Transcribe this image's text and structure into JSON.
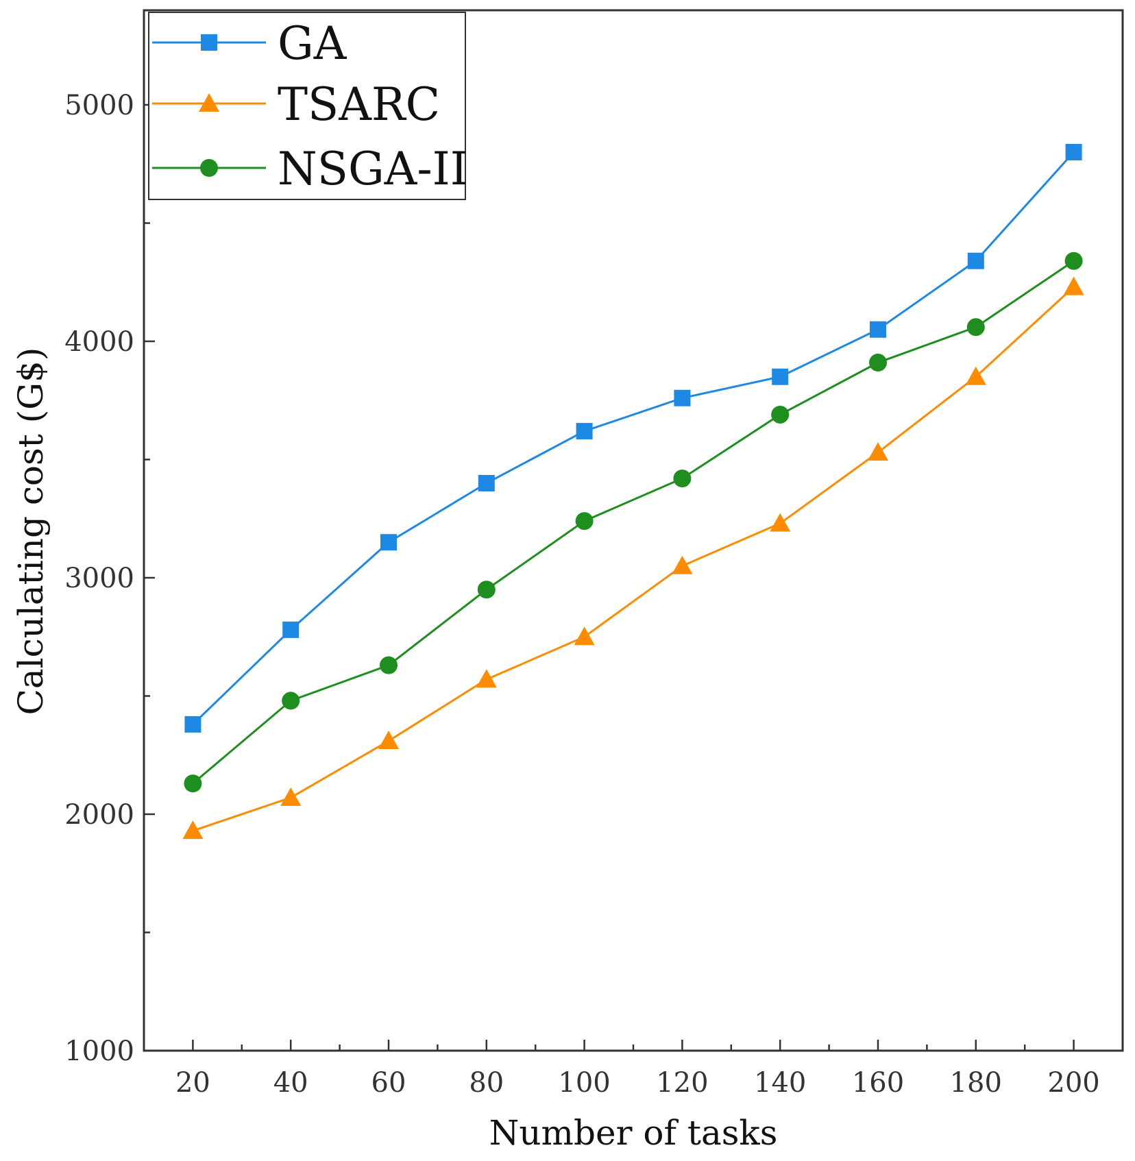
{
  "chart_data": {
    "type": "line",
    "xlabel": "Number of tasks",
    "ylabel": "Calculating cost (G$)",
    "x": [
      20,
      40,
      60,
      80,
      100,
      120,
      140,
      160,
      180,
      200
    ],
    "xticks": [
      "20",
      "40",
      "60",
      "80",
      "100",
      "120",
      "140",
      "160",
      "180",
      "200"
    ],
    "xlim": [
      10,
      210
    ],
    "ylim": [
      1000,
      5400
    ],
    "yticks": [
      "1000",
      "2000",
      "3000",
      "4000",
      "5000"
    ],
    "grid": false,
    "legend_position": "top-left",
    "series": [
      {
        "name": "GA",
        "color": "#1E88E5",
        "marker": "square",
        "values": [
          2380,
          2780,
          3150,
          3400,
          3620,
          3760,
          3850,
          4050,
          4340,
          4800
        ]
      },
      {
        "name": "TSARC",
        "color": "#FF8C00",
        "marker": "triangle",
        "values": [
          1930,
          2070,
          2310,
          2570,
          2750,
          3050,
          3230,
          3530,
          3850,
          4230
        ]
      },
      {
        "name": "NSGA-II",
        "color": "#1E8E1E",
        "marker": "circle",
        "values": [
          2130,
          2480,
          2630,
          2950,
          3240,
          3420,
          3690,
          3910,
          4060,
          4340
        ]
      }
    ]
  }
}
